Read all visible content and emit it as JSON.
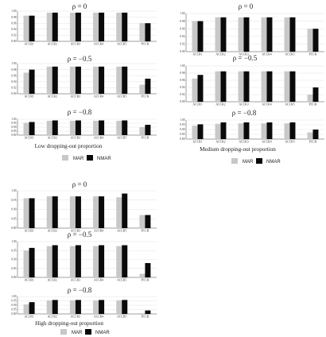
{
  "colors": {
    "MAR": "#c8c8c8",
    "NMAR": "#0a0a0a",
    "axis": "#444444",
    "grid": "#dcdcdc"
  },
  "legend": {
    "mar_label": "MAR",
    "nmar_label": "NMAR"
  },
  "groups": [
    {
      "caption": "Low dropping-out proportion",
      "panels": [
        {
          "title": "ρ = 0"
        },
        {
          "title": "ρ = −0.5"
        },
        {
          "title": "ρ = −0.8"
        }
      ]
    },
    {
      "caption": "Medium dropping-out proportion",
      "panels": [
        {
          "title": "ρ = 0"
        },
        {
          "title": "ρ = −0.5"
        },
        {
          "title": "ρ = −0.8"
        }
      ]
    },
    {
      "caption": "High dropping-out proportion",
      "panels": [
        {
          "title": "ρ = 0"
        },
        {
          "title": "ρ = −0.5"
        },
        {
          "title": "ρ = −0.8"
        }
      ]
    }
  ],
  "chart_data": [
    {
      "type": "bar",
      "group": "Low dropping-out proportion",
      "title": "ρ = 0",
      "categories": [
        "ACCR1",
        "ACCR2",
        "ACCR3",
        "ACCR4",
        "ACCR5",
        "PCCR"
      ],
      "series": [
        {
          "name": "MAR",
          "values": [
            0.985,
            0.995,
            0.995,
            0.995,
            0.995,
            0.96
          ]
        },
        {
          "name": "NMAR",
          "values": [
            0.985,
            0.995,
            0.995,
            0.995,
            0.995,
            0.96
          ]
        }
      ],
      "ylim": [
        0.9,
        1.0
      ],
      "yticks": [
        "1.00",
        "0.98",
        "0.96",
        "0.94",
        "0.92",
        "0.90"
      ]
    },
    {
      "type": "bar",
      "group": "Low dropping-out proportion",
      "title": "ρ = −0.5",
      "categories": [
        "ACCR1",
        "ACCR2",
        "ACCR3",
        "ACCR4",
        "ACCR5",
        "PCCR"
      ],
      "series": [
        {
          "name": "MAR",
          "values": [
            0.97,
            0.99,
            0.99,
            0.99,
            0.99,
            0.93
          ]
        },
        {
          "name": "NMAR",
          "values": [
            0.98,
            0.99,
            0.99,
            0.99,
            0.99,
            0.95
          ]
        }
      ],
      "ylim": [
        0.9,
        1.0
      ],
      "yticks": [
        "1.00",
        "0.98",
        "0.96",
        "0.94",
        "0.92",
        "0.90"
      ]
    },
    {
      "type": "bar",
      "group": "Low dropping-out proportion",
      "title": "ρ = −0.8",
      "categories": [
        "ACCR1",
        "ACCR2",
        "ACCR3",
        "ACCR4",
        "ACCR5",
        "PCCR"
      ],
      "series": [
        {
          "name": "MAR",
          "values": [
            0.955,
            0.98,
            0.98,
            0.98,
            0.98,
            0.9
          ]
        },
        {
          "name": "NMAR",
          "values": [
            0.965,
            0.985,
            0.985,
            0.985,
            0.985,
            0.93
          ]
        }
      ],
      "ylim": [
        0.8,
        1.0
      ],
      "yticks": [
        "1.00",
        "0.95",
        "0.90",
        "0.85",
        "0.80"
      ]
    },
    {
      "type": "bar",
      "group": "Medium dropping-out proportion",
      "title": "ρ = 0",
      "categories": [
        "ACCR1",
        "ACCR2",
        "ACCR3",
        "ACCR4",
        "ACCR5",
        "PCCR"
      ],
      "series": [
        {
          "name": "MAR",
          "values": [
            0.98,
            0.99,
            0.99,
            0.99,
            0.99,
            0.96
          ]
        },
        {
          "name": "NMAR",
          "values": [
            0.98,
            0.99,
            0.99,
            0.99,
            0.99,
            0.96
          ]
        }
      ],
      "ylim": [
        0.9,
        1.0
      ],
      "yticks": [
        "1.00",
        "0.98",
        "0.96",
        "0.94",
        "0.92",
        "0.90"
      ]
    },
    {
      "type": "bar",
      "group": "Medium dropping-out proportion",
      "title": "ρ = −0.5",
      "categories": [
        "ACCR1",
        "ACCR2",
        "ACCR3",
        "ACCR4",
        "ACCR5",
        "PCCR"
      ],
      "series": [
        {
          "name": "MAR",
          "values": [
            0.965,
            0.985,
            0.985,
            0.985,
            0.985,
            0.92
          ]
        },
        {
          "name": "NMAR",
          "values": [
            0.975,
            0.985,
            0.985,
            0.985,
            0.985,
            0.94
          ]
        }
      ],
      "ylim": [
        0.9,
        1.0
      ],
      "yticks": [
        "1.00",
        "0.98",
        "0.96",
        "0.94",
        "0.92",
        "0.90"
      ]
    },
    {
      "type": "bar",
      "group": "Medium dropping-out proportion",
      "title": "ρ = −0.8",
      "categories": [
        "ACCR1",
        "ACCR2",
        "ACCR3",
        "ACCR4",
        "ACCR5",
        "PCCR"
      ],
      "series": [
        {
          "name": "MAR",
          "values": [
            0.94,
            0.96,
            0.965,
            0.965,
            0.965,
            0.87
          ]
        },
        {
          "name": "NMAR",
          "values": [
            0.955,
            0.975,
            0.975,
            0.975,
            0.975,
            0.9
          ]
        }
      ],
      "ylim": [
        0.8,
        1.0
      ],
      "yticks": [
        "1.00",
        "0.95",
        "0.90",
        "0.85",
        "0.80"
      ]
    },
    {
      "type": "bar",
      "group": "High dropping-out proportion",
      "title": "ρ = 0",
      "categories": [
        "ACCR1",
        "ACCR2",
        "ACCR3",
        "ACCR4",
        "ACCR5",
        "PCCR"
      ],
      "series": [
        {
          "name": "MAR",
          "values": [
            0.96,
            0.97,
            0.97,
            0.97,
            0.965,
            0.87
          ]
        },
        {
          "name": "NMAR",
          "values": [
            0.96,
            0.97,
            0.97,
            0.97,
            0.985,
            0.87
          ]
        }
      ],
      "ylim": [
        0.8,
        1.0
      ],
      "yticks": [
        "1.00",
        "0.95",
        "0.90",
        "0.85",
        "0.80"
      ]
    },
    {
      "type": "bar",
      "group": "High dropping-out proportion",
      "title": "ρ = −0.5",
      "categories": [
        "ACCR1",
        "ACCR2",
        "ACCR3",
        "ACCR4",
        "ACCR5",
        "PCCR"
      ],
      "series": [
        {
          "name": "MAR",
          "values": [
            0.95,
            0.975,
            0.975,
            0.975,
            0.975,
            0.82
          ]
        },
        {
          "name": "NMAR",
          "values": [
            0.965,
            0.98,
            0.98,
            0.98,
            0.98,
            0.88
          ]
        }
      ],
      "ylim": [
        0.8,
        1.0
      ],
      "yticks": [
        "1.00",
        "0.95",
        "0.90",
        "0.85",
        "0.80"
      ]
    },
    {
      "type": "bar",
      "group": "High dropping-out proportion",
      "title": "ρ = −0.8",
      "categories": [
        "ACCR1",
        "ACCR2",
        "ACCR3",
        "ACCR4",
        "ACCR5",
        "PCCR"
      ],
      "series": [
        {
          "name": "MAR",
          "values": [
            0.91,
            0.955,
            0.955,
            0.955,
            0.955,
            0.8
          ]
        },
        {
          "name": "NMAR",
          "values": [
            0.935,
            0.96,
            0.96,
            0.96,
            0.96,
            0.84
          ]
        }
      ],
      "ylim": [
        0.8,
        1.0
      ],
      "yticks": [
        "1.00",
        "0.95",
        "0.90",
        "0.85",
        "0.80"
      ]
    }
  ]
}
